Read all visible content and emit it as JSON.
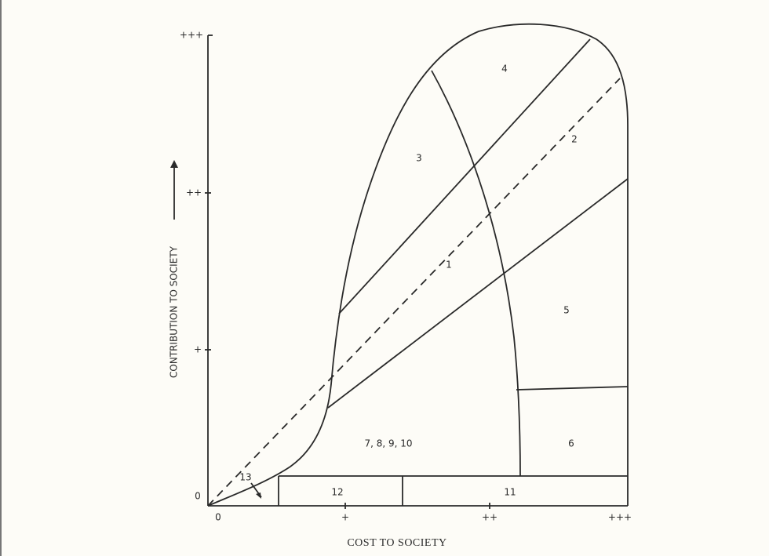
{
  "axes": {
    "y_label": "CONTRIBUTION TO SOCIETY",
    "x_label": "COST TO SOCIETY",
    "y_ticks": [
      "0",
      "+",
      "++",
      "+++"
    ],
    "x_ticks": [
      "0",
      "+",
      "++",
      "+++"
    ]
  },
  "regions": [
    "1",
    "2",
    "3",
    "4",
    "5",
    "6",
    "7, 8, 9, 10",
    "11",
    "12",
    "13"
  ]
}
